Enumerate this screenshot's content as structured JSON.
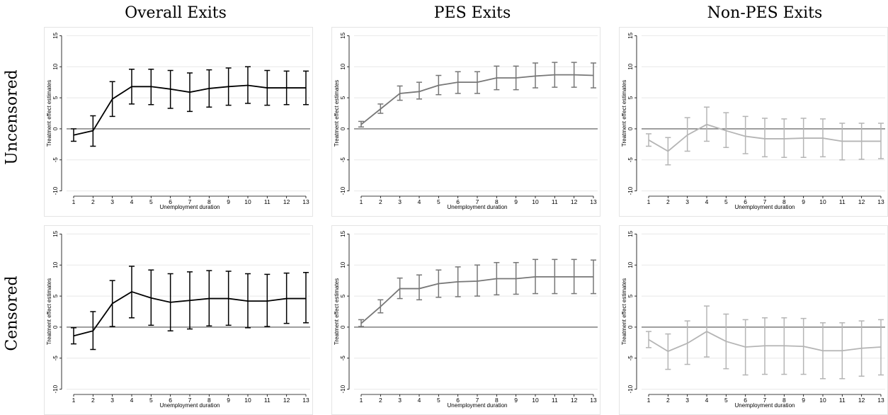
{
  "columns": [
    "Overall Exits",
    "PES Exits",
    "Non-PES Exits"
  ],
  "rows": [
    "Uncensored",
    "Censored"
  ],
  "chart_data": [
    {
      "type": "line",
      "id": "overall-uncensored",
      "color": "#000000",
      "xlabel": "Unemployment duration",
      "ylabel": "Treatment effect estimates",
      "x": [
        1,
        2,
        3,
        4,
        5,
        6,
        7,
        8,
        9,
        10,
        11,
        12,
        13
      ],
      "yticks": [
        15,
        10,
        5,
        0,
        -5,
        -10
      ],
      "ylim": [
        -10.5,
        15.5
      ],
      "point": [
        -1,
        -0.3,
        4.8,
        6.8,
        6.8,
        6.4,
        5.9,
        6.5,
        6.8,
        7,
        6.6,
        6.6,
        6.6
      ],
      "lower": [
        -2,
        -2.8,
        2,
        4,
        3.9,
        3.3,
        2.8,
        3.5,
        3.8,
        4.1,
        3.8,
        3.9,
        3.9
      ],
      "upper": [
        0,
        2.1,
        7.6,
        9.6,
        9.6,
        9.4,
        9,
        9.5,
        9.8,
        10,
        9.4,
        9.3,
        9.3
      ]
    },
    {
      "type": "line",
      "id": "pes-uncensored",
      "color": "#777777",
      "xlabel": "Unemployment duration",
      "ylabel": "Treatment effect estimates",
      "x": [
        1,
        2,
        3,
        4,
        5,
        6,
        7,
        8,
        9,
        10,
        11,
        12,
        13
      ],
      "yticks": [
        15,
        10,
        5,
        0,
        -5,
        -10
      ],
      "ylim": [
        -10.5,
        15.5
      ],
      "point": [
        0.7,
        3.2,
        5.7,
        6,
        7,
        7.5,
        7.5,
        8.2,
        8.2,
        8.5,
        8.7,
        8.7,
        8.6
      ],
      "lower": [
        0.3,
        2.5,
        4.6,
        4.8,
        5.5,
        5.7,
        5.7,
        6.3,
        6.3,
        6.6,
        6.7,
        6.7,
        6.6
      ],
      "upper": [
        1.2,
        4,
        6.9,
        7.5,
        8.6,
        9.2,
        9.2,
        10.1,
        10.1,
        10.6,
        10.7,
        10.7,
        10.6
      ]
    },
    {
      "type": "line",
      "id": "nonpes-uncensored",
      "color": "#b5b5b5",
      "xlabel": "Unemployment duration",
      "ylabel": "Treatment effect estimates",
      "x": [
        1,
        2,
        3,
        4,
        5,
        6,
        7,
        8,
        9,
        10,
        11,
        12,
        13
      ],
      "yticks": [
        15,
        10,
        5,
        0,
        -5,
        -10
      ],
      "ylim": [
        -10.5,
        15.5
      ],
      "point": [
        -1.8,
        -3.6,
        -1,
        0.7,
        -0.3,
        -1.2,
        -1.6,
        -1.6,
        -1.5,
        -1.5,
        -2,
        -2,
        -2
      ],
      "lower": [
        -2.8,
        -5.8,
        -3.6,
        -2,
        -3,
        -4,
        -4.5,
        -4.6,
        -4.6,
        -4.5,
        -5,
        -4.9,
        -4.8
      ],
      "upper": [
        -0.8,
        -1.4,
        1.8,
        3.5,
        2.6,
        2,
        1.7,
        1.6,
        1.7,
        1.6,
        0.9,
        0.9,
        0.9
      ]
    },
    {
      "type": "line",
      "id": "overall-censored",
      "color": "#000000",
      "xlabel": "Unemployment duration",
      "ylabel": "Treatment effect estimates",
      "x": [
        1,
        2,
        3,
        4,
        5,
        6,
        7,
        8,
        9,
        10,
        11,
        12,
        13
      ],
      "yticks": [
        15,
        10,
        5,
        0,
        -5,
        -10
      ],
      "ylim": [
        -10.5,
        15.5
      ],
      "point": [
        -1.4,
        -0.6,
        3.8,
        5.7,
        4.7,
        4,
        4.3,
        4.6,
        4.6,
        4.2,
        4.2,
        4.6,
        4.6
      ],
      "lower": [
        -2.7,
        -3.6,
        0.1,
        1.5,
        0.3,
        -0.6,
        -0.3,
        0.2,
        0.3,
        -0.1,
        0.1,
        0.6,
        0.7
      ],
      "upper": [
        -0.1,
        2.5,
        7.5,
        9.8,
        9.2,
        8.6,
        8.9,
        9.1,
        9,
        8.6,
        8.5,
        8.7,
        8.8
      ]
    },
    {
      "type": "line",
      "id": "pes-censored",
      "color": "#777777",
      "xlabel": "Unemployment duration",
      "ylabel": "Treatment effect estimates",
      "x": [
        1,
        2,
        3,
        4,
        5,
        6,
        7,
        8,
        9,
        10,
        11,
        12,
        13
      ],
      "yticks": [
        15,
        10,
        5,
        0,
        -5,
        -10
      ],
      "ylim": [
        -10.5,
        15.5
      ],
      "point": [
        0.6,
        3.3,
        6.2,
        6.2,
        7,
        7.3,
        7.4,
        7.8,
        7.8,
        8.1,
        8.1,
        8.1,
        8.1
      ],
      "lower": [
        0.1,
        2.3,
        4.6,
        4.4,
        4.8,
        4.9,
        5,
        5.2,
        5.3,
        5.4,
        5.4,
        5.4,
        5.4
      ],
      "upper": [
        1.2,
        4.4,
        7.9,
        8.4,
        9.2,
        9.7,
        10,
        10.4,
        10.4,
        10.9,
        10.9,
        10.9,
        10.8
      ]
    },
    {
      "type": "line",
      "id": "nonpes-censored",
      "color": "#b5b5b5",
      "xlabel": "Unemployment duration",
      "ylabel": "Treatment effect estimates",
      "x": [
        1,
        2,
        3,
        4,
        5,
        6,
        7,
        8,
        9,
        10,
        11,
        12,
        13
      ],
      "yticks": [
        15,
        10,
        5,
        0,
        -5,
        -10
      ],
      "ylim": [
        -10.5,
        15.5
      ],
      "point": [
        -2,
        -3.9,
        -2.6,
        -0.7,
        -2.3,
        -3.2,
        -3,
        -3,
        -3.1,
        -3.8,
        -3.8,
        -3.4,
        -3.2
      ],
      "lower": [
        -3.3,
        -6.8,
        -6,
        -4.8,
        -6.7,
        -7.7,
        -7.6,
        -7.6,
        -7.6,
        -8.3,
        -8.3,
        -7.9,
        -7.7
      ],
      "upper": [
        -0.7,
        -1.1,
        1,
        3.4,
        2.1,
        1.2,
        1.5,
        1.5,
        1.4,
        0.7,
        0.7,
        1,
        1.2
      ]
    }
  ]
}
